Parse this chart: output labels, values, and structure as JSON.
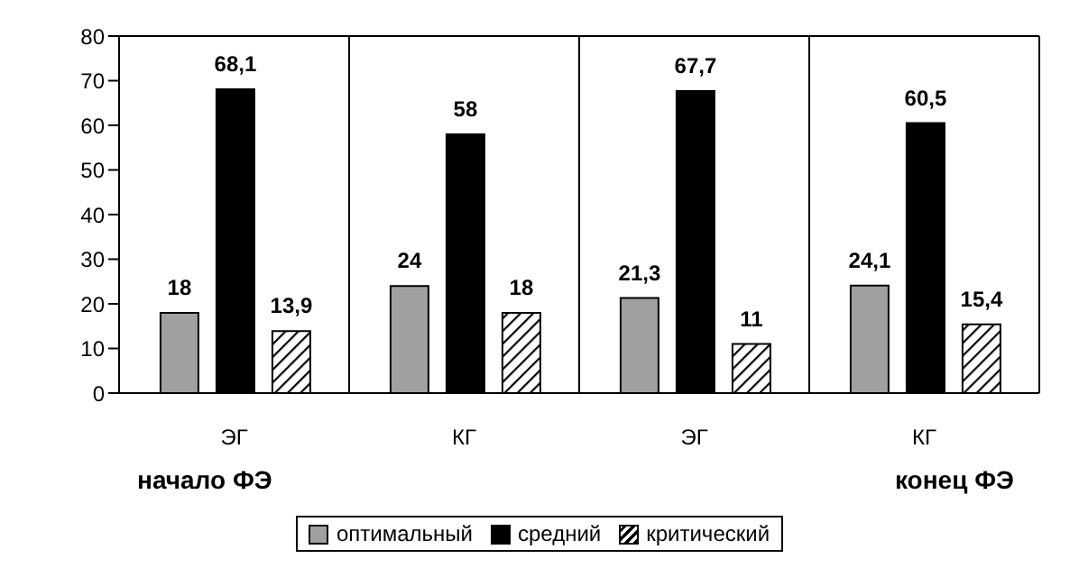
{
  "chart_data": {
    "type": "bar",
    "categories": [
      "ЭГ",
      "КГ",
      "ЭГ",
      "КГ"
    ],
    "series": [
      {
        "name": "оптимальный",
        "color": "#a0a0a0",
        "values": [
          18,
          24,
          21.3,
          24.1
        ],
        "value_labels": [
          "18",
          "24",
          "21,3",
          "24,1"
        ]
      },
      {
        "name": "средний",
        "color": "#000000",
        "values": [
          68.1,
          58,
          67.7,
          60.5
        ],
        "value_labels": [
          "68,1",
          "58",
          "67,7",
          "60,5"
        ]
      },
      {
        "name": "критический",
        "color": "#000000",
        "values": [
          13.9,
          18,
          11,
          15.4
        ],
        "value_labels": [
          "13,9",
          "18",
          "11",
          "15,4"
        ]
      }
    ],
    "ylim": [
      0,
      80
    ],
    "yticks": [
      0,
      10,
      20,
      30,
      40,
      50,
      60,
      70,
      80
    ],
    "grid": "x",
    "legend": "bottom",
    "annotations": [
      "начало ФЭ",
      "конец ФЭ"
    ]
  }
}
